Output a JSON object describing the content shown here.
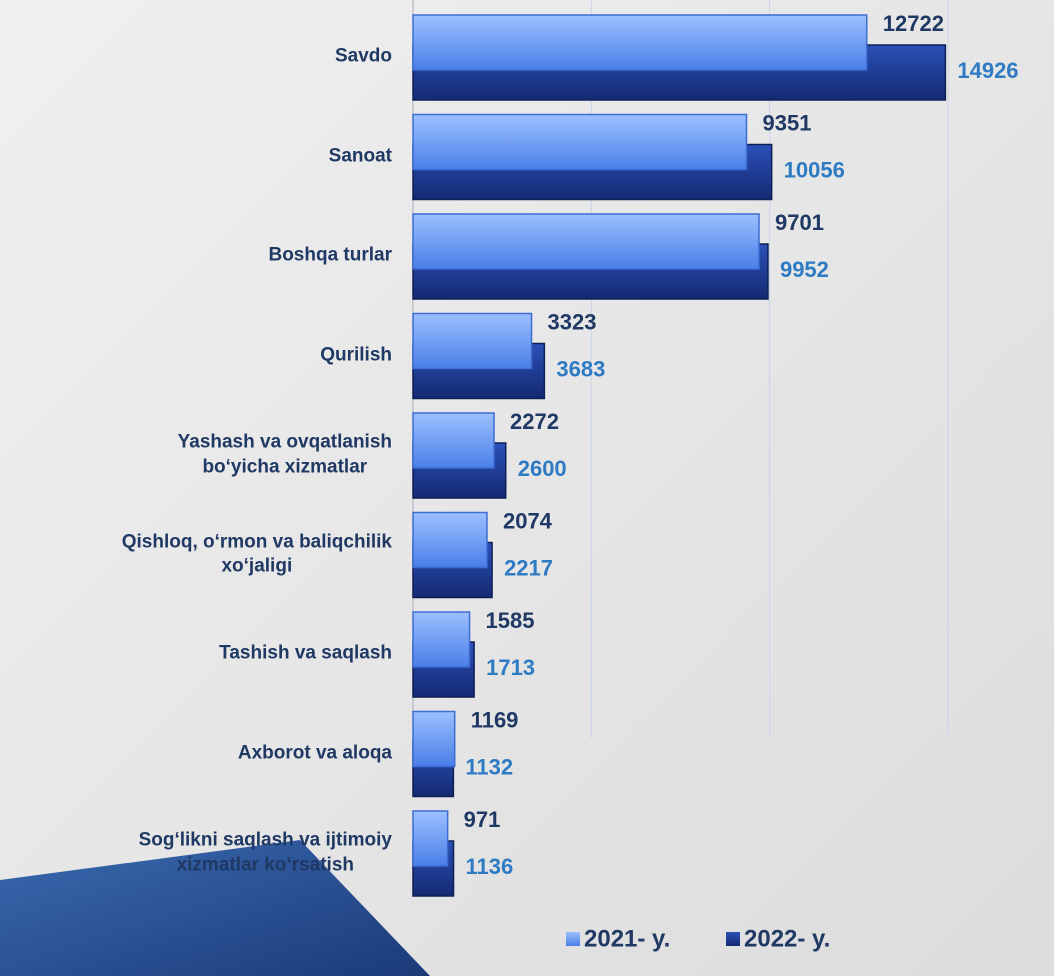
{
  "chart_data": {
    "type": "bar",
    "orientation": "horizontal",
    "categories": [
      "Savdo",
      "Sanoat",
      "Boshqa turlar",
      "Qurilish",
      "Yashash va ovqatlanish\nbo‘yicha xizmatlar",
      "Qishloq, o‘rmon va baliqchilik\nxo‘jaligi",
      "Tashish va saqlash",
      "Axborot va aloqa",
      "Sog‘likni saqlash va ijtimoiy\nxizmatlar ko‘rsatish"
    ],
    "series": [
      {
        "name": "2021- y.",
        "color": "#5b8ff5",
        "label_color": "#1f3864",
        "values": [
          12722,
          9351,
          9701,
          3323,
          2272,
          2074,
          1585,
          1169,
          971
        ]
      },
      {
        "name": "2022- y.",
        "color": "#1d3b9a",
        "label_color": "#2e7bc4",
        "values": [
          14926,
          10056,
          9952,
          3683,
          2600,
          2217,
          1713,
          1132,
          1136
        ]
      }
    ],
    "xlim": [
      0,
      15000
    ],
    "xticks": [
      0,
      5000,
      10000,
      15000
    ],
    "grid": true
  }
}
